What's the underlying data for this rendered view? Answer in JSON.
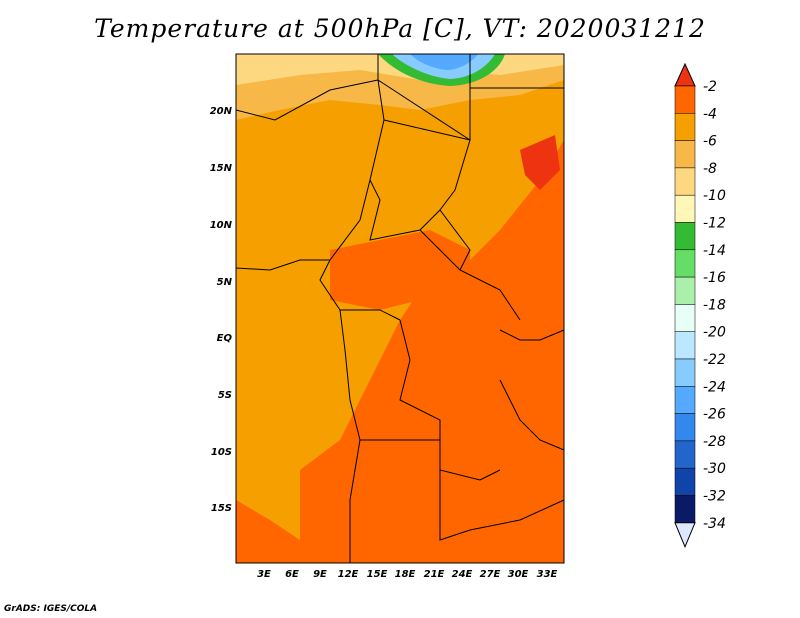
{
  "title": "Temperature at 500hPa [C], VT: 2020031212",
  "credit": "GrADS: IGES/COLA",
  "axes": {
    "lat_ticks": [
      "20N",
      "15N",
      "10N",
      "5N",
      "EQ",
      "5S",
      "10S",
      "15S"
    ],
    "lon_ticks": [
      "3E",
      "6E",
      "9E",
      "12E",
      "15E",
      "18E",
      "21E",
      "24E",
      "27E",
      "30E",
      "33E"
    ]
  },
  "colorbar": {
    "labels": [
      "-2",
      "-4",
      "-6",
      "-8",
      "-10",
      "-12",
      "-14",
      "-16",
      "-18",
      "-20",
      "-22",
      "-24",
      "-26",
      "-28",
      "-30",
      "-32",
      "-34"
    ],
    "colors": [
      "#ee3311",
      "#ff6600",
      "#f5a000",
      "#f8b848",
      "#fdd880",
      "#fff6b8",
      "#33bb33",
      "#66dd66",
      "#aaf0aa",
      "#e8fff8",
      "#bbe8ff",
      "#88ccff",
      "#55aaff",
      "#3388ee",
      "#2266cc",
      "#1144aa",
      "#0a1a66",
      "#dde8ff"
    ]
  },
  "colors": {
    "c_m4": "#ff6600",
    "c_m2": "#ee3311",
    "c_m6": "#f5a000",
    "c_m8": "#f8b848",
    "c_m10": "#fdd880",
    "c_m12": "#fff6b8",
    "border": "#000000"
  }
}
